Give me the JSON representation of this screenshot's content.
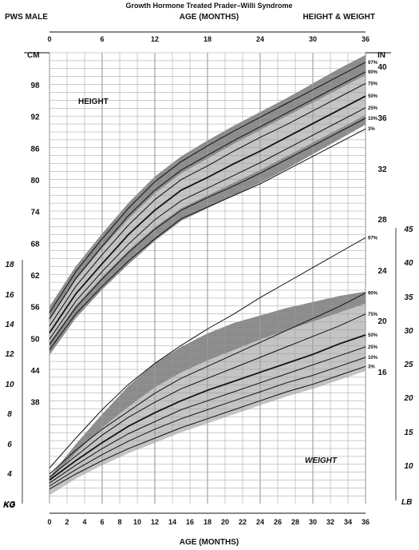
{
  "header": {
    "title": "Growth Hormone Treated Prader–Willi Syndrome",
    "left": "PWS MALE",
    "center": "AGE (MONTHS)",
    "right": "HEIGHT & WEIGHT"
  },
  "footer": {
    "xlabel": "AGE (MONTHS)"
  },
  "units": {
    "cm": "CM",
    "in": "IN",
    "kg": "KG",
    "lb": "LB"
  },
  "panel_labels": {
    "height": "HEIGHT",
    "weight": "WEIGHT"
  },
  "colors": {
    "dark_band": "#8c8c8c",
    "light_band": "#c4c4c4",
    "grid": "#9a9a9a",
    "curve": "#111111"
  },
  "chart_data": [
    {
      "type": "line",
      "name": "Height",
      "x_unit": "months",
      "y_unit": "cm",
      "x": [
        0,
        3,
        6,
        9,
        12,
        15,
        18,
        21,
        24,
        27,
        30,
        33,
        36
      ],
      "xlim": [
        0,
        36
      ],
      "ylim": [
        48,
        104
      ],
      "top_ticks": [
        "0",
        "6",
        "12",
        "18",
        "24",
        "30",
        "36"
      ],
      "cm_ticks": [
        "98",
        "92",
        "86",
        "80",
        "74",
        "68",
        "62",
        "56",
        "50",
        "44",
        "38"
      ],
      "in_ticks": [
        "40",
        "36",
        "32",
        "28",
        "24",
        "20",
        "16"
      ],
      "percentile_labels": [
        "97%",
        "90%",
        "75%",
        "50%",
        "25%",
        "10%",
        "3%"
      ],
      "series": [
        {
          "label": "97%",
          "values": [
            55.0,
            62.8,
            69.0,
            74.8,
            79.8,
            83.6,
            86.6,
            89.4,
            92.0,
            94.6,
            97.2,
            99.8,
            102.4
          ]
        },
        {
          "label": "90%",
          "values": [
            53.8,
            61.5,
            67.6,
            73.4,
            78.2,
            82.0,
            84.8,
            87.6,
            90.2,
            92.8,
            95.4,
            98.0,
            100.6
          ]
        },
        {
          "label": "75%",
          "values": [
            52.5,
            60.0,
            66.0,
            71.6,
            76.4,
            80.2,
            82.8,
            85.6,
            88.2,
            90.6,
            93.2,
            95.8,
            98.4
          ]
        },
        {
          "label": "50%",
          "values": [
            51.2,
            58.6,
            64.3,
            69.8,
            74.4,
            78.2,
            80.6,
            83.2,
            85.6,
            88.2,
            90.8,
            93.4,
            96.0
          ]
        },
        {
          "label": "25%",
          "values": [
            50.0,
            57.2,
            62.8,
            68.0,
            72.6,
            76.2,
            78.6,
            81.0,
            83.4,
            86.0,
            88.6,
            91.2,
            93.8
          ]
        },
        {
          "label": "10%",
          "values": [
            49.0,
            56.0,
            61.4,
            66.4,
            70.8,
            74.4,
            76.8,
            79.0,
            81.4,
            84.0,
            86.6,
            89.2,
            91.8
          ]
        },
        {
          "label": "3%",
          "values": [
            48.0,
            54.8,
            60.0,
            64.8,
            69.0,
            72.8,
            75.0,
            77.2,
            79.4,
            82.0,
            84.6,
            87.2,
            89.8
          ]
        }
      ],
      "band_outer": {
        "upper": [
          56.2,
          63.8,
          70.0,
          75.8,
          80.8,
          84.6,
          87.6,
          90.4,
          93.0,
          95.6,
          98.4,
          101.2,
          103.8
        ],
        "lower": [
          47.0,
          54.0,
          59.4,
          64.2,
          68.6,
          72.4,
          74.8,
          77.2,
          79.6,
          82.2,
          85.0,
          87.8,
          90.6
        ]
      },
      "band_inner": {
        "upper": [
          53.6,
          61.2,
          67.2,
          72.8,
          77.6,
          81.4,
          84.2,
          87.0,
          89.6,
          92.2,
          94.8,
          97.4,
          100.0
        ],
        "lower": [
          49.4,
          56.4,
          61.8,
          66.8,
          71.2,
          74.8,
          77.2,
          79.6,
          82.0,
          84.6,
          87.2,
          89.8,
          92.4
        ]
      }
    },
    {
      "type": "line",
      "name": "Weight",
      "x_unit": "months",
      "y_unit": "kg",
      "x": [
        0,
        3,
        6,
        9,
        12,
        15,
        18,
        21,
        24,
        27,
        30,
        33,
        36
      ],
      "xlim": [
        0,
        36
      ],
      "ylim": [
        2,
        19
      ],
      "kg_ticks": [
        "18",
        "16",
        "14",
        "12",
        "10",
        "8",
        "6",
        "4",
        "KG"
      ],
      "lb_ticks": [
        "45",
        "40",
        "35",
        "30",
        "25",
        "20",
        "15",
        "10"
      ],
      "bottom_ticks": [
        "0",
        "2",
        "4",
        "6",
        "8",
        "10",
        "12",
        "14",
        "16",
        "18",
        "20",
        "22",
        "24",
        "26",
        "28",
        "30",
        "32",
        "34",
        "36"
      ],
      "percentile_labels": [
        "97%",
        "90%",
        "75%",
        "50%",
        "25%",
        "10%",
        "3%"
      ],
      "series": [
        {
          "label": "97%",
          "values": [
            4.4,
            6.4,
            8.3,
            10.0,
            11.4,
            12.6,
            13.7,
            14.7,
            15.8,
            16.8,
            17.8,
            18.8,
            19.8
          ]
        },
        {
          "label": "90%",
          "values": [
            4.0,
            5.6,
            7.0,
            8.2,
            9.4,
            10.4,
            11.2,
            12.0,
            12.8,
            13.6,
            14.4,
            15.2,
            16.1
          ]
        },
        {
          "label": "75%",
          "values": [
            3.8,
            5.2,
            6.6,
            7.8,
            8.8,
            9.7,
            10.4,
            11.1,
            11.8,
            12.5,
            13.2,
            13.9,
            14.7
          ]
        },
        {
          "label": "50%",
          "values": [
            3.6,
            4.9,
            6.1,
            7.2,
            8.1,
            8.9,
            9.6,
            10.2,
            10.8,
            11.4,
            12.0,
            12.7,
            13.3
          ]
        },
        {
          "label": "25%",
          "values": [
            3.4,
            4.6,
            5.7,
            6.7,
            7.5,
            8.3,
            8.9,
            9.5,
            10.1,
            10.7,
            11.3,
            11.9,
            12.5
          ]
        },
        {
          "label": "10%",
          "values": [
            3.2,
            4.3,
            5.3,
            6.2,
            7.0,
            7.7,
            8.3,
            8.9,
            9.5,
            10.1,
            10.6,
            11.2,
            11.8
          ]
        },
        {
          "label": "3%",
          "values": [
            3.0,
            4.0,
            4.9,
            5.7,
            6.4,
            7.1,
            7.7,
            8.3,
            8.9,
            9.5,
            10.0,
            10.6,
            11.2
          ]
        }
      ],
      "band_outer": {
        "upper": [
          3.8,
          6.0,
          8.0,
          9.9,
          11.4,
          12.5,
          13.4,
          14.1,
          14.6,
          15.1,
          15.5,
          15.9,
          16.2
        ],
        "lower": [
          2.6,
          3.7,
          4.6,
          5.4,
          6.1,
          6.8,
          7.4,
          8.0,
          8.6,
          9.2,
          9.7,
          10.3,
          10.9
        ]
      },
      "band_inner": {
        "upper": [
          3.6,
          5.4,
          7.1,
          8.5,
          9.8,
          10.8,
          11.6,
          12.3,
          13.0,
          13.6,
          14.2,
          14.8,
          15.4
        ]
      }
    }
  ]
}
